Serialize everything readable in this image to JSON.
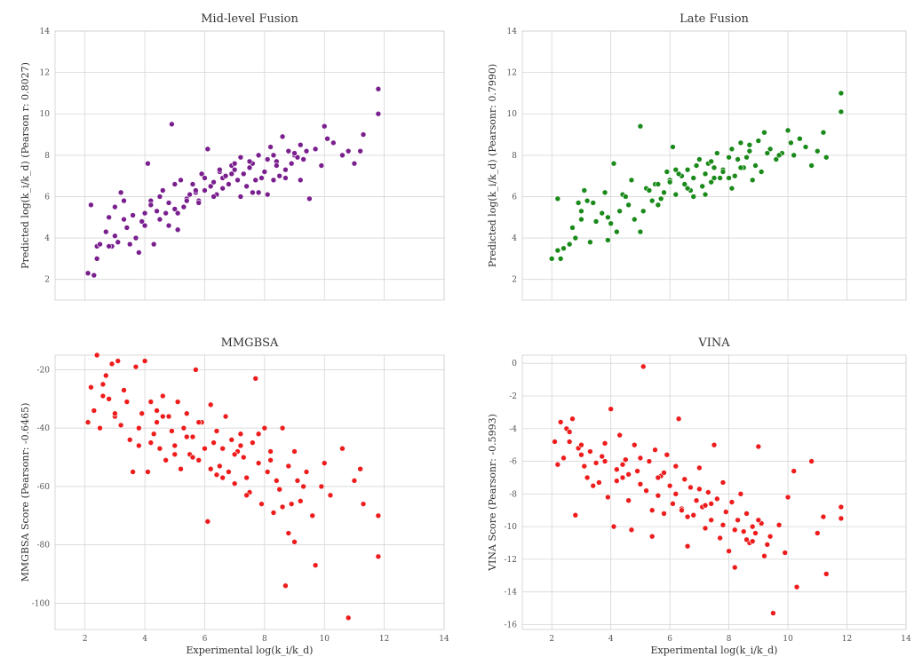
{
  "chart_data": [
    {
      "type": "scatter",
      "title": "Mid-level Fusion",
      "xlabel": "",
      "ylabel": "Predicted log(k_i/k_d) (Pearson r: 0.8027)",
      "xlim": [
        1,
        14
      ],
      "ylim": [
        1,
        14
      ],
      "xticks": [],
      "yticks": [
        2,
        4,
        6,
        8,
        10,
        12,
        14
      ],
      "grid": true,
      "color": "#7a1f8e",
      "series": [
        {
          "x": [
            2.1,
            2.3,
            2.2,
            2.4,
            2.5,
            2.7,
            2.8,
            2.9,
            3.0,
            3.1,
            3.2,
            3.3,
            3.5,
            3.6,
            3.8,
            3.9,
            4.0,
            4.1,
            4.2,
            4.3,
            4.4,
            4.5,
            4.6,
            4.7,
            4.8,
            4.9,
            5.0,
            5.1,
            5.2,
            5.3,
            5.4,
            5.5,
            5.6,
            5.7,
            5.8,
            5.9,
            6.0,
            6.1,
            6.2,
            6.3,
            6.4,
            6.5,
            6.6,
            6.7,
            6.8,
            6.9,
            7.0,
            7.1,
            7.2,
            7.3,
            7.4,
            7.5,
            7.6,
            7.7,
            7.8,
            7.9,
            8.0,
            8.1,
            8.2,
            8.3,
            8.4,
            8.5,
            8.6,
            8.7,
            8.8,
            8.9,
            9.0,
            9.1,
            9.2,
            9.3,
            9.5,
            9.7,
            9.9,
            10.1,
            10.3,
            10.8,
            11.0,
            11.2,
            11.3,
            11.8,
            11.8,
            2.4,
            2.8,
            3.0,
            3.4,
            3.7,
            4.2,
            4.5,
            4.8,
            5.1,
            5.4,
            5.7,
            6.0,
            6.3,
            6.6,
            6.9,
            7.2,
            7.5,
            7.8,
            8.1,
            8.4,
            8.7,
            9.0,
            9.4,
            10.0,
            3.3,
            4.0,
            5.0,
            5.8,
            6.5,
            7.0,
            7.6,
            8.3,
            9.2,
            10.6
          ],
          "y": [
            2.3,
            2.2,
            5.6,
            3.6,
            3.7,
            4.3,
            5.0,
            3.6,
            5.5,
            3.8,
            6.2,
            4.9,
            3.7,
            5.1,
            3.3,
            4.8,
            4.6,
            7.6,
            5.8,
            3.7,
            5.3,
            4.9,
            6.3,
            5.2,
            5.7,
            9.5,
            5.4,
            4.4,
            6.8,
            5.5,
            5.9,
            6.1,
            6.6,
            6.2,
            5.8,
            7.1,
            6.3,
            8.3,
            6.5,
            6.7,
            6.1,
            7.2,
            6.9,
            7.0,
            6.6,
            7.5,
            7.3,
            6.8,
            7.9,
            7.1,
            6.5,
            7.4,
            7.6,
            6.8,
            8.0,
            6.9,
            7.2,
            7.8,
            8.4,
            6.8,
            7.7,
            7.0,
            8.9,
            7.3,
            8.2,
            7.6,
            8.0,
            7.9,
            6.8,
            7.8,
            5.9,
            8.3,
            7.5,
            8.8,
            8.6,
            8.2,
            7.6,
            8.2,
            9.0,
            10.0,
            11.2,
            3.0,
            3.6,
            4.1,
            4.5,
            4.0,
            5.6,
            6.0,
            4.6,
            5.2,
            5.8,
            6.3,
            6.9,
            6.0,
            6.4,
            7.1,
            6.0,
            7.7,
            6.2,
            6.1,
            7.5,
            6.9,
            8.1,
            8.2,
            9.4,
            5.8,
            5.2,
            6.6,
            5.7,
            7.3,
            7.6,
            6.2,
            8.0,
            8.5,
            8.0
          ]
        }
      ]
    },
    {
      "type": "scatter",
      "title": "Late Fusion",
      "xlabel": "",
      "ylabel": "Predicted log(k_i/k_d) (Pearsonr: 0.7990)",
      "xlim": [
        1,
        14
      ],
      "ylim": [
        1,
        14
      ],
      "xticks": [],
      "yticks": [
        2,
        4,
        6,
        8,
        10,
        12,
        14
      ],
      "grid": true,
      "color": "#1a8a1a",
      "series": [
        {
          "x": [
            2.0,
            2.2,
            2.3,
            2.4,
            2.6,
            2.8,
            2.9,
            3.0,
            3.1,
            3.3,
            3.5,
            3.7,
            3.9,
            4.0,
            4.1,
            4.2,
            4.4,
            4.6,
            4.8,
            5.0,
            5.1,
            5.2,
            5.4,
            5.5,
            5.6,
            5.8,
            5.9,
            6.0,
            6.1,
            6.2,
            6.4,
            6.5,
            6.6,
            6.7,
            6.8,
            7.0,
            7.1,
            7.2,
            7.3,
            7.4,
            7.5,
            7.6,
            7.7,
            7.8,
            8.0,
            8.1,
            8.2,
            8.3,
            8.4,
            8.5,
            8.6,
            8.7,
            8.9,
            9.0,
            9.1,
            9.2,
            9.4,
            9.6,
            9.8,
            10.0,
            10.2,
            10.4,
            10.8,
            11.0,
            11.2,
            11.3,
            11.8,
            11.8,
            2.2,
            2.7,
            3.0,
            3.4,
            3.8,
            4.3,
            4.7,
            5.0,
            5.3,
            5.7,
            6.0,
            6.3,
            6.6,
            6.9,
            7.2,
            7.5,
            7.8,
            8.1,
            8.4,
            8.8,
            9.3,
            9.7,
            10.1,
            3.2,
            3.9,
            4.5,
            5.6,
            6.2,
            6.8,
            7.4,
            8.0,
            8.7,
            10.6
          ],
          "y": [
            3.0,
            5.9,
            3.0,
            3.5,
            3.7,
            4.0,
            5.7,
            5.3,
            6.3,
            3.8,
            4.8,
            5.2,
            3.9,
            4.7,
            7.6,
            4.3,
            6.1,
            5.6,
            4.9,
            9.4,
            5.3,
            6.4,
            5.8,
            6.6,
            5.6,
            6.2,
            7.2,
            6.8,
            8.4,
            6.1,
            7.0,
            6.6,
            7.3,
            6.3,
            6.9,
            7.8,
            6.5,
            7.1,
            7.6,
            6.7,
            7.4,
            8.1,
            6.9,
            7.3,
            7.9,
            8.3,
            7.0,
            7.8,
            8.6,
            7.4,
            7.9,
            8.2,
            7.5,
            8.7,
            7.2,
            9.1,
            8.3,
            7.8,
            8.1,
            9.2,
            8.0,
            8.8,
            7.5,
            8.2,
            9.1,
            7.9,
            10.1,
            11.0,
            3.4,
            4.5,
            4.9,
            5.7,
            6.2,
            5.3,
            6.8,
            4.3,
            6.3,
            5.9,
            6.7,
            7.1,
            6.4,
            7.5,
            6.1,
            6.9,
            7.2,
            6.4,
            7.4,
            6.8,
            8.1,
            8.0,
            8.6,
            5.8,
            5.0,
            6.0,
            6.6,
            7.3,
            6.0,
            7.7,
            6.9,
            8.5,
            8.4
          ]
        }
      ]
    },
    {
      "type": "scatter",
      "title": "MMGBSA",
      "xlabel": "Experimental log(k_i/k_d)",
      "ylabel": "MMGBSA Score (Pearsonr: -0.6465)",
      "xlim": [
        1,
        14
      ],
      "ylim": [
        -109,
        -15
      ],
      "xticks": [
        2,
        4,
        6,
        8,
        10,
        12,
        14
      ],
      "yticks": [
        -20,
        -40,
        -60,
        -80,
        -100
      ],
      "grid": true,
      "color": "#ee1c1c",
      "series": [
        {
          "x": [
            2.1,
            2.2,
            2.3,
            2.4,
            2.5,
            2.6,
            2.7,
            2.8,
            2.9,
            3.0,
            3.1,
            3.2,
            3.3,
            3.5,
            3.6,
            3.7,
            3.8,
            3.9,
            4.0,
            4.1,
            4.2,
            4.3,
            4.4,
            4.5,
            4.6,
            4.7,
            4.8,
            4.9,
            5.0,
            5.1,
            5.2,
            5.3,
            5.4,
            5.5,
            5.6,
            5.7,
            5.8,
            5.9,
            6.0,
            6.1,
            6.2,
            6.3,
            6.4,
            6.5,
            6.6,
            6.7,
            6.8,
            6.9,
            7.0,
            7.1,
            7.2,
            7.3,
            7.4,
            7.5,
            7.6,
            7.7,
            7.8,
            7.9,
            8.0,
            8.1,
            8.2,
            8.3,
            8.4,
            8.5,
            8.6,
            8.7,
            8.8,
            8.9,
            9.0,
            9.1,
            9.2,
            9.4,
            9.6,
            9.7,
            9.9,
            10.0,
            10.2,
            10.6,
            10.8,
            11.0,
            11.2,
            11.3,
            11.8,
            11.8,
            2.6,
            3.0,
            3.4,
            3.8,
            4.2,
            4.6,
            5.0,
            5.4,
            5.8,
            6.2,
            6.6,
            7.0,
            7.4,
            7.8,
            8.2,
            8.6,
            9.0,
            9.3,
            4.4,
            5.6,
            6.4,
            7.2,
            8.8
          ],
          "y": [
            -38,
            -26,
            -34,
            -15,
            -40,
            -25,
            -22,
            -30,
            -18,
            -36,
            -17,
            -39,
            -27,
            -44,
            -55,
            -19,
            -46,
            -35,
            -17,
            -55,
            -31,
            -42,
            -38,
            -47,
            -29,
            -51,
            -36,
            -41,
            -46,
            -31,
            -54,
            -40,
            -35,
            -49,
            -43,
            -20,
            -51,
            -38,
            -47,
            -72,
            -32,
            -45,
            -41,
            -53,
            -47,
            -36,
            -55,
            -44,
            -59,
            -48,
            -42,
            -50,
            -57,
            -62,
            -45,
            -23,
            -52,
            -66,
            -40,
            -55,
            -48,
            -69,
            -58,
            -61,
            -40,
            -94,
            -53,
            -66,
            -79,
            -58,
            -65,
            -55,
            -70,
            -87,
            -60,
            -52,
            -63,
            -47,
            -105,
            -58,
            -54,
            -66,
            -70,
            -84,
            -29,
            -35,
            -31,
            -40,
            -45,
            -36,
            -49,
            -43,
            -38,
            -54,
            -57,
            -49,
            -63,
            -42,
            -51,
            -67,
            -48,
            -60,
            -34,
            -50,
            -56,
            -46,
            -76
          ]
        }
      ]
    },
    {
      "type": "scatter",
      "title": "VINA",
      "xlabel": "Experimental log(k_i/k_d)",
      "ylabel": "VINA Score (Pearsonr: -0.5993)",
      "xlim": [
        1,
        14
      ],
      "ylim": [
        -16.3,
        0.5
      ],
      "xticks": [
        2,
        4,
        6,
        8,
        10,
        12,
        14
      ],
      "yticks": [
        0,
        -2,
        -4,
        -6,
        -8,
        -10,
        -12,
        -14,
        -16
      ],
      "grid": true,
      "color": "#ee1c1c",
      "series": [
        {
          "x": [
            2.1,
            2.2,
            2.3,
            2.4,
            2.5,
            2.6,
            2.7,
            2.8,
            2.9,
            3.0,
            3.1,
            3.2,
            3.3,
            3.5,
            3.6,
            3.7,
            3.8,
            3.9,
            4.0,
            4.1,
            4.2,
            4.3,
            4.4,
            4.5,
            4.6,
            4.7,
            4.8,
            4.9,
            5.0,
            5.1,
            5.2,
            5.3,
            5.4,
            5.5,
            5.6,
            5.7,
            5.8,
            5.9,
            6.0,
            6.1,
            6.2,
            6.3,
            6.4,
            6.5,
            6.6,
            6.7,
            6.8,
            6.9,
            7.0,
            7.1,
            7.2,
            7.3,
            7.4,
            7.5,
            7.6,
            7.7,
            7.8,
            7.9,
            8.0,
            8.1,
            8.2,
            8.3,
            8.4,
            8.5,
            8.6,
            8.7,
            8.8,
            8.9,
            9.0,
            9.1,
            9.2,
            9.4,
            9.5,
            9.7,
            9.9,
            10.0,
            10.2,
            10.3,
            10.8,
            11.0,
            11.2,
            11.3,
            11.8,
            11.8,
            2.6,
            3.0,
            3.4,
            3.8,
            4.2,
            4.6,
            5.0,
            5.4,
            5.8,
            6.2,
            6.6,
            7.0,
            7.4,
            7.8,
            8.2,
            8.6,
            9.0,
            9.3,
            4.4,
            5.6,
            6.4,
            7.2,
            8.8
          ],
          "y": [
            -4.8,
            -6.2,
            -3.6,
            -5.8,
            -4.0,
            -4.8,
            -3.4,
            -9.3,
            -5.2,
            -5.6,
            -6.3,
            -7.0,
            -5.4,
            -6.1,
            -7.3,
            -5.7,
            -4.9,
            -8.2,
            -2.8,
            -10.0,
            -6.5,
            -4.4,
            -7.0,
            -5.9,
            -6.8,
            -10.2,
            -5.0,
            -6.6,
            -7.4,
            -0.2,
            -7.8,
            -6.0,
            -10.6,
            -5.3,
            -8.1,
            -6.9,
            -9.2,
            -5.6,
            -7.5,
            -8.6,
            -6.3,
            -3.4,
            -8.9,
            -7.1,
            -11.2,
            -7.6,
            -9.3,
            -8.4,
            -6.4,
            -8.8,
            -10.1,
            -7.9,
            -9.6,
            -5.0,
            -8.3,
            -10.7,
            -7.3,
            -9.1,
            -11.5,
            -8.5,
            -12.5,
            -9.6,
            -8.0,
            -10.3,
            -9.2,
            -11.0,
            -10.0,
            -10.4,
            -5.1,
            -9.8,
            -11.8,
            -10.6,
            -15.3,
            -9.9,
            -11.6,
            -8.2,
            -6.6,
            -13.7,
            -6.0,
            -10.4,
            -9.4,
            -12.9,
            -8.8,
            -9.5,
            -4.2,
            -5.0,
            -7.5,
            -6.0,
            -7.2,
            -8.4,
            -5.8,
            -9.0,
            -6.7,
            -8.0,
            -9.4,
            -7.7,
            -8.6,
            -9.9,
            -10.2,
            -10.8,
            -9.6,
            -11.1,
            -6.2,
            -7.0,
            -9.0,
            -8.7,
            -10.9
          ]
        }
      ]
    }
  ]
}
